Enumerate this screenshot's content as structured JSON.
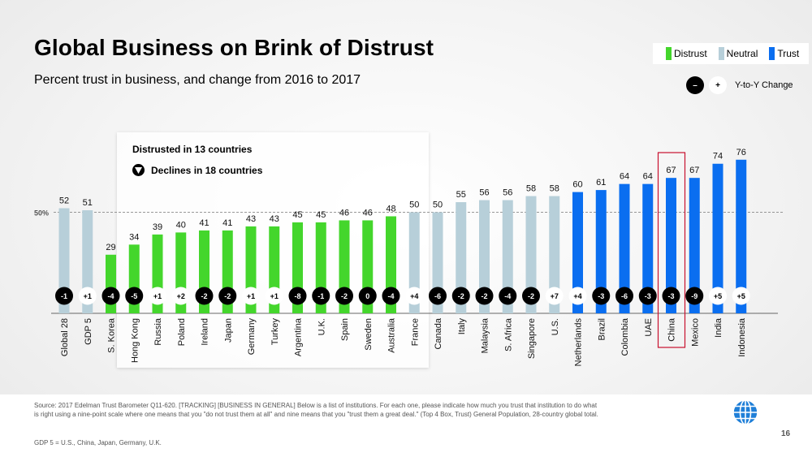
{
  "title": "Global Business on Brink of Distrust",
  "subtitle": "Percent trust in business, and change from 2016 to 2017",
  "legend": {
    "items": [
      {
        "label": "Distrust",
        "color": "#44d62c"
      },
      {
        "label": "Neutral",
        "color": "#b7cfd9"
      },
      {
        "label": "Trust",
        "color": "#0a6ef0"
      }
    ]
  },
  "yoy_legend": {
    "negative_symbol": "–",
    "positive_symbol": "+",
    "label": "Y-to-Y Change"
  },
  "callout": {
    "line1": "Distrusted in 13 countries",
    "line2": "Declines in 18 countries"
  },
  "chart_data": {
    "type": "bar",
    "reference_line": {
      "value": 50,
      "label": "50%"
    },
    "ylim": [
      0,
      80
    ],
    "categories": [
      "Global 28",
      "GDP 5",
      "S. Korea",
      "Hong Kong",
      "Russia",
      "Poland",
      "Ireland",
      "Japan",
      "Germany",
      "Turkey",
      "Argentina",
      "U.K.",
      "Spain",
      "Sweden",
      "Australia",
      "France",
      "Canada",
      "Italy",
      "Malaysia",
      "S. Africa",
      "Singapore",
      "U.S.",
      "Netherlands",
      "Brazil",
      "Colombia",
      "UAE",
      "China",
      "Mexico",
      "India",
      "Indonesia"
    ],
    "values": [
      52,
      51,
      29,
      34,
      39,
      40,
      41,
      41,
      43,
      43,
      45,
      45,
      46,
      46,
      48,
      50,
      50,
      55,
      56,
      56,
      58,
      58,
      60,
      61,
      64,
      64,
      67,
      67,
      74,
      76
    ],
    "category_group": [
      "neutral",
      "neutral",
      "distrust",
      "distrust",
      "distrust",
      "distrust",
      "distrust",
      "distrust",
      "distrust",
      "distrust",
      "distrust",
      "distrust",
      "distrust",
      "distrust",
      "distrust",
      "neutral",
      "neutral",
      "neutral",
      "neutral",
      "neutral",
      "neutral",
      "neutral",
      "trust",
      "trust",
      "trust",
      "trust",
      "trust",
      "trust",
      "trust",
      "trust"
    ],
    "change_labels": [
      "-1",
      "+1",
      "-4",
      "-5",
      "+1",
      "+2",
      "-2",
      "-2",
      "+1",
      "+1",
      "-8",
      "-1",
      "-2",
      "0",
      "-4",
      "+4",
      "-6",
      "-2",
      "-2",
      "-4",
      "-2",
      "+7",
      "+4",
      "-3",
      "-6",
      "-3",
      "-3",
      "-9",
      "+5",
      "+5"
    ],
    "highlighted": "China"
  },
  "footer": {
    "source": "Source: 2017 Edelman Trust Barometer Q11-620. [TRACKING] [BUSINESS IN GENERAL] Below is a list of institutions. For each one, please indicate how much you trust that institution to do what is right using a nine-point scale where one means that you \"do not trust them at all\" and nine means that you \"trust them a great deal.\" (Top 4 Box, Trust) General Population, 28-country global total.",
    "gdp_note": "GDP 5 = U.S., China, Japan, Germany, U.K.",
    "page_number": "16"
  },
  "colors": {
    "distrust": "#44d62c",
    "neutral": "#b7cfd9",
    "trust": "#0a6ef0",
    "highlight_box": "#c8102e"
  },
  "icons": {
    "globe": "globe-icon",
    "triangle": "down-triangle-icon"
  }
}
